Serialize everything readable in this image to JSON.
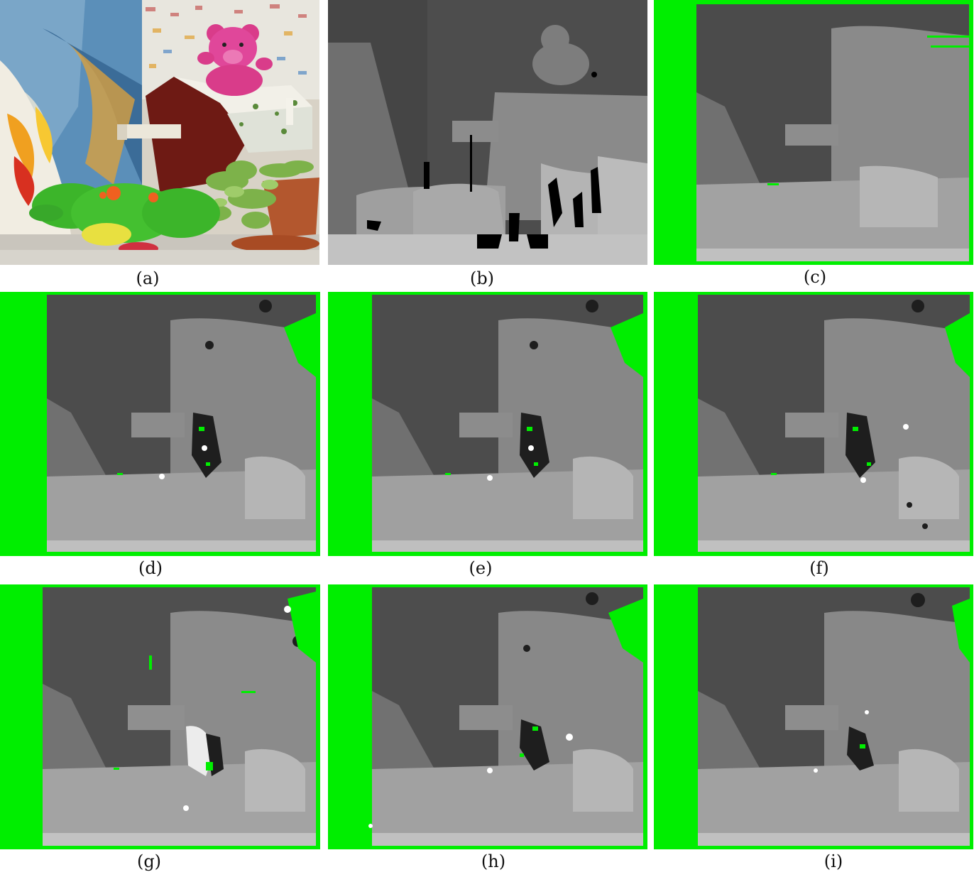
{
  "figure": {
    "panels": [
      {
        "id": "a",
        "caption": "(a)",
        "content": "color photograph of scene with pink teddy bear, green plush frog, potted succulents and wooden box"
      },
      {
        "id": "b",
        "caption": "(b)",
        "content": "grayscale ground-truth disparity map"
      },
      {
        "id": "c",
        "caption": "(c)",
        "content": "grayscale disparity map with green invalid-region border"
      },
      {
        "id": "d",
        "caption": "(d)",
        "content": "grayscale disparity map with green invalid regions"
      },
      {
        "id": "e",
        "caption": "(e)",
        "content": "grayscale disparity map with green invalid regions"
      },
      {
        "id": "f",
        "caption": "(f)",
        "content": "grayscale disparity map with green invalid regions"
      },
      {
        "id": "g",
        "caption": "(g)",
        "content": "grayscale disparity map with green invalid regions"
      },
      {
        "id": "h",
        "caption": "(h)",
        "content": "grayscale disparity map with green invalid regions"
      },
      {
        "id": "i",
        "caption": "(i)",
        "content": "grayscale disparity map with green invalid regions"
      }
    ],
    "colors": {
      "invalid_green": "#00ee00",
      "far": "#4a4a4a",
      "mid": "#7c7c7c",
      "near": "#a8a8a8",
      "nearest": "#c4c4c4"
    }
  }
}
